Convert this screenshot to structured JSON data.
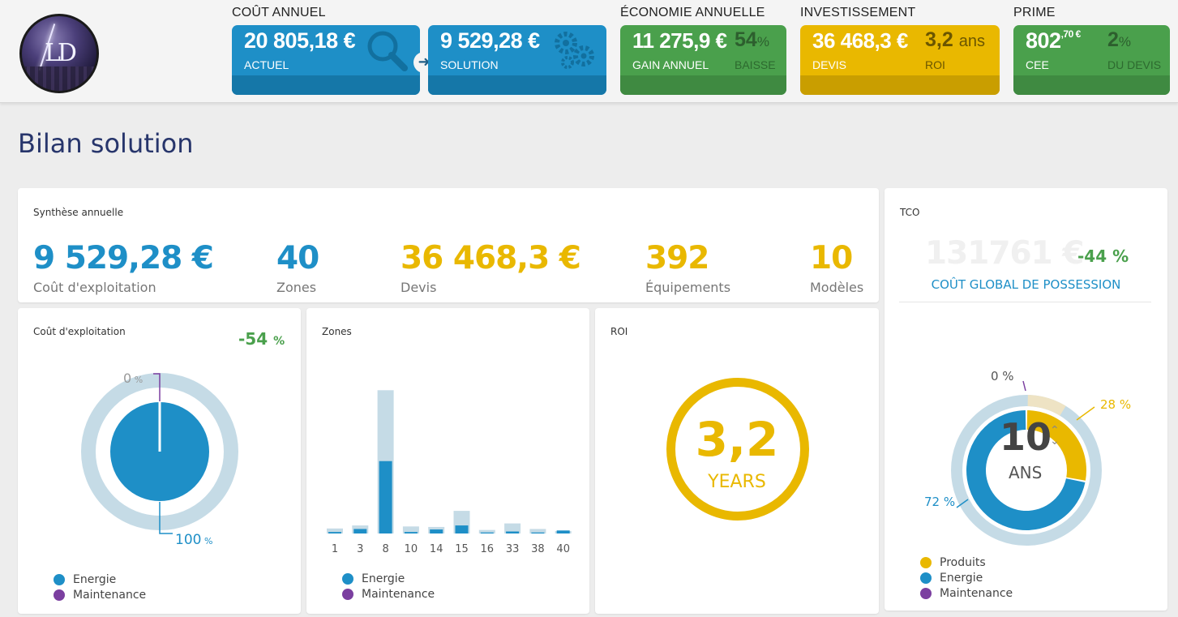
{
  "header": {
    "sections": {
      "cout_annuel": "COÛT ANNUEL",
      "economie": "ÉCONOMIE ANNUELLE",
      "investissement": "INVESTISSEMENT",
      "prime": "PRIME"
    },
    "actuel": {
      "value": "20 805,18 €",
      "label": "ACTUEL",
      "icon": "magnifier-icon"
    },
    "solution": {
      "value": "9 529,28 €",
      "label": "SOLUTION",
      "icon": "gears-icon"
    },
    "gain": {
      "value": "11 275,9 €",
      "label": "GAIN ANNUEL",
      "pct": "54",
      "pct_unit": "%",
      "pct_label": "BAISSE"
    },
    "devis": {
      "value": "36 468,3 €",
      "label": "DEVIS",
      "roi": "3,2",
      "roi_unit": "ans",
      "roi_label": "ROI"
    },
    "prime": {
      "value": "802",
      "cents": ",70 €",
      "label": "CEE",
      "pct": "2",
      "pct_unit": "%",
      "pct_label": "DU DEVIS"
    }
  },
  "page_title": "Bilan solution",
  "synthese": {
    "title": "Synthèse annuelle",
    "kpis": [
      {
        "value": "9 529,28 €",
        "label": "Coût d'exploitation"
      },
      {
        "value": "40",
        "label": "Zones"
      },
      {
        "value": "36 468,3 €",
        "label": "Devis"
      },
      {
        "value": "392",
        "label": "Équipements"
      },
      {
        "value": "10",
        "label": "Modèles"
      }
    ]
  },
  "tco": {
    "title": "TCO",
    "value": "131761 €",
    "pct": "-44 %",
    "subtitle": "COÛT GLOBAL DE POSSESSION",
    "center_value": "10",
    "center_unit": "ANS",
    "labels": {
      "maintenance": "0 %",
      "produits": "28 %",
      "energie": "72 %"
    },
    "legend": [
      "Produits",
      "Energie",
      "Maintenance"
    ]
  },
  "cout_exploitation": {
    "title": "Coût d'exploitation",
    "pct": "-54",
    "pct_unit": "%",
    "label_zero": "0",
    "label_zero_unit": "%",
    "label_hundred": "100",
    "label_hundred_unit": "%",
    "legend": [
      "Energie",
      "Maintenance"
    ]
  },
  "zones": {
    "title": "Zones",
    "legend": [
      "Energie",
      "Maintenance"
    ]
  },
  "roi": {
    "title": "ROI",
    "value": "3,2",
    "unit": "YEARS"
  },
  "colors": {
    "blue": "#1e8fc7",
    "green": "#4aa04c",
    "yellow": "#e9b800",
    "light_blue": "#c5dbe6",
    "purple": "#7b3fa0",
    "navy": "#27356b"
  },
  "chart_data": [
    {
      "type": "pie",
      "title": "Coût d'exploitation",
      "series": [
        {
          "name": "Energie",
          "values": [
            100
          ]
        },
        {
          "name": "Maintenance",
          "values": [
            0
          ]
        }
      ]
    },
    {
      "type": "bar",
      "title": "Zones",
      "categories": [
        "1",
        "3",
        "8",
        "10",
        "14",
        "15",
        "16",
        "33",
        "38",
        "40"
      ],
      "series": [
        {
          "name": "Energie",
          "values": [
            0.3,
            0.9,
            14.4,
            0.3,
            0.8,
            1.6,
            0.2,
            0.4,
            0.2,
            0.6
          ]
        },
        {
          "name": "Maintenance",
          "values": [
            0,
            0,
            0,
            0,
            0,
            0,
            0,
            0,
            0,
            0
          ]
        }
      ],
      "reference_values": [
        1.0,
        1.6,
        28.5,
        1.4,
        1.3,
        4.5,
        0.7,
        2.0,
        0.9,
        0.5
      ],
      "ylim": [
        0,
        30
      ]
    },
    {
      "type": "pie",
      "title": "TCO",
      "series": [
        {
          "name": "Produits",
          "values": [
            28
          ]
        },
        {
          "name": "Energie",
          "values": [
            72
          ]
        },
        {
          "name": "Maintenance",
          "values": [
            0
          ]
        }
      ]
    }
  ]
}
